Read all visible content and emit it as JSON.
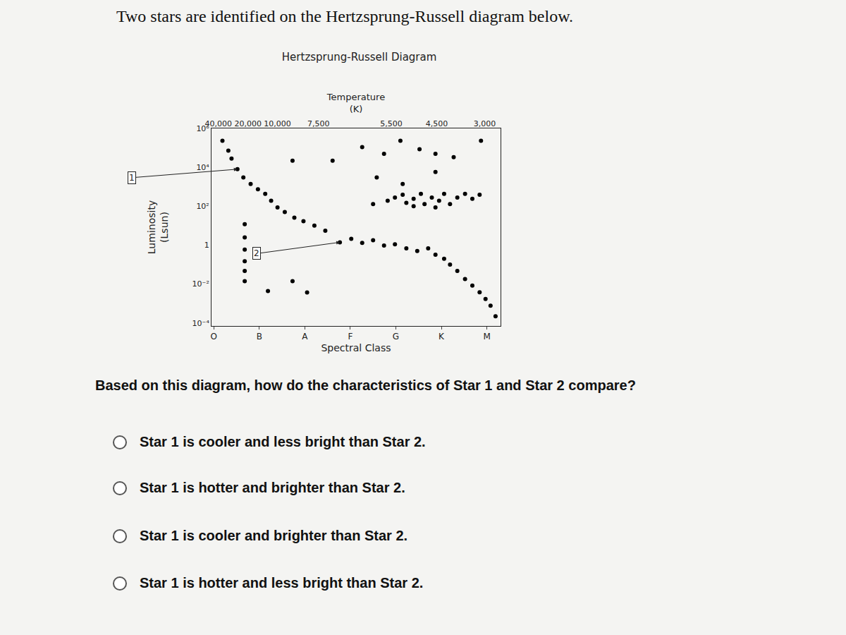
{
  "header": "Two stars are identified on the Hertzsprung-Russell diagram below.",
  "chart_data": {
    "type": "scatter",
    "title": "Hertzsprung-Russell Diagram",
    "xlabel": "Spectral Class",
    "x2_label": [
      "Temperature",
      "(K)"
    ],
    "ylabel": [
      "Luminosity",
      "(Lsun)"
    ],
    "log": "y",
    "grid": false,
    "color": "#000000",
    "marker": "circle",
    "xlim": [
      -0.05,
      6.3
    ],
    "ylim": [
      7e-05,
      1000000
    ],
    "xticks": [
      {
        "value": 0,
        "label": "O"
      },
      {
        "value": 1,
        "label": "B"
      },
      {
        "value": 2,
        "label": "A"
      },
      {
        "value": 3,
        "label": "F"
      },
      {
        "value": 4,
        "label": "G"
      },
      {
        "value": 5,
        "label": "K"
      },
      {
        "value": 6,
        "label": "M"
      }
    ],
    "x2ticks": [
      {
        "value": 0.1,
        "label": "40,000"
      },
      {
        "value": 0.75,
        "label": "20,000"
      },
      {
        "value": 1.4,
        "label": "10,000"
      },
      {
        "value": 2.3,
        "label": "7,500"
      },
      {
        "value": 3.9,
        "label": "5,500"
      },
      {
        "value": 4.9,
        "label": "4,500"
      },
      {
        "value": 5.95,
        "label": "3,000"
      }
    ],
    "yticks": [
      {
        "value": 0.0001,
        "label": "10⁻⁴"
      },
      {
        "value": 0.01,
        "label": "10⁻²"
      },
      1,
      {
        "value": 100,
        "label": "10²"
      },
      {
        "value": 10000,
        "label": "10⁴"
      },
      {
        "value": 1000000,
        "label": "10⁶"
      }
    ],
    "x": [
      0.19,
      0.32,
      1.73,
      2.61,
      3.26,
      3.74,
      4.1,
      4.52,
      4.87,
      5.27,
      5.87,
      3.58,
      4.15,
      4.87,
      3.5,
      3.82,
      3.98,
      4.15,
      4.23,
      4.39,
      4.55,
      4.63,
      4.79,
      4.95,
      5.06,
      5.19,
      5.35,
      5.52,
      5.68,
      5.84,
      4.39,
      4.87,
      0.39,
      0.52,
      0.65,
      0.81,
      0.97,
      1.13,
      1.26,
      1.4,
      1.56,
      1.77,
      1.97,
      2.21,
      2.45,
      2.77,
      3.02,
      3.26,
      3.5,
      3.74,
      3.98,
      4.23,
      4.47,
      4.71,
      4.87,
      5.06,
      5.19,
      5.35,
      5.52,
      5.68,
      5.84,
      5.97,
      6.08,
      6.19,
      0.68,
      0.68,
      0.68,
      0.68,
      0.68,
      0.68,
      1.19,
      1.73,
      2.05
    ],
    "values": [
      230000,
      72000,
      22000,
      22000,
      110000,
      49000,
      230000,
      85000,
      49000,
      33000,
      230000,
      3000,
      1400,
      5800,
      130,
      190,
      280,
      390,
      150,
      240,
      430,
      130,
      280,
      190,
      430,
      130,
      280,
      430,
      240,
      390,
      100,
      87,
      28000,
      8000,
      3000,
      1400,
      740,
      430,
      190,
      87,
      50,
      26,
      17,
      10,
      5.5,
      1.4,
      2.1,
      1.3,
      1.8,
      0.95,
      1.1,
      0.69,
      0.5,
      0.69,
      0.32,
      0.2,
      0.1,
      0.047,
      0.018,
      0.0083,
      0.0038,
      0.0017,
      0.00078,
      0.00022,
      12,
      2.5,
      0.59,
      0.15,
      0.047,
      0.014,
      0.0044,
      0.014,
      0.0037
    ],
    "annotations": [
      {
        "text": "1",
        "x": 0.52,
        "y": 8000
      },
      {
        "text": "2",
        "x": 2.77,
        "y": 1.4
      }
    ]
  },
  "question": "Based on this diagram, how do the characteristics of Star 1 and Star 2 compare?",
  "options": [
    "Star 1 is cooler and less bright than Star 2.",
    "Star 1 is hotter and brighter than Star 2.",
    "Star 1 is cooler and brighter than Star 2.",
    "Star 1 is hotter and less bright than Star 2."
  ]
}
